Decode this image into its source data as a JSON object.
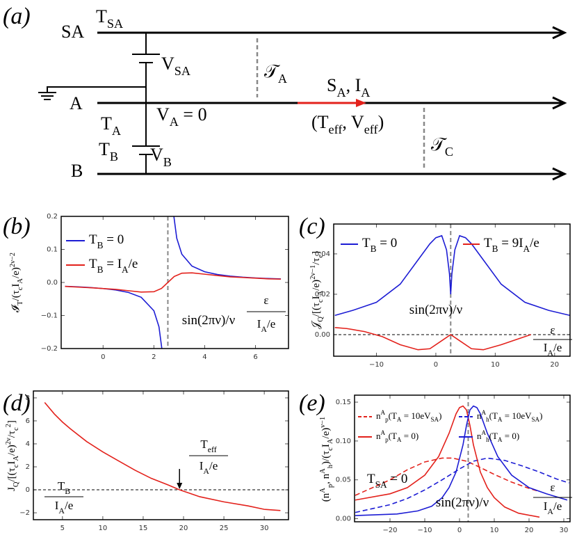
{
  "diagram": {
    "panel_label": "(a)",
    "sa": "SA",
    "t_sa": "T_{SA}",
    "v_sa": "V_{SA}",
    "tau_a": "𝒯_{A}",
    "a": "A",
    "t_a": "T_{A}",
    "v_a": "V_{A} = 0",
    "s_a": "S_{A},  I_{A}",
    "t_eff": "(T_{eff}, V_{eff})",
    "tau_c": "𝒯_{C}",
    "t_b": "T_{B}",
    "v_b": "V_{B}",
    "b": "B"
  },
  "chart_data": [
    {
      "type": "line",
      "panel_label": "(b)",
      "ylabel": "𝓘_{T}/(τ_{c}I_{A}/e)^{2ν−2}",
      "xlabel": [
        "ε",
        "I_{A}/e"
      ],
      "xlim": [
        -1.65,
        7.3
      ],
      "ylim": [
        -0.2,
        0.2
      ],
      "xticks": [
        0,
        2,
        4,
        6
      ],
      "yticks": [
        {
          "value": -0.2,
          "label": "−0.2"
        },
        {
          "value": -0.1,
          "label": "−0.1"
        },
        {
          "value": 0,
          "label": "0.0"
        },
        0.1,
        0.2
      ],
      "vline": 2.55,
      "annotations": [
        "sin(2πν)/ν"
      ],
      "series": [
        {
          "name": "T_{B} = 0",
          "color": "#1c1cd4",
          "linestyle": "solid",
          "x": [
            -1.5,
            -1,
            -0.5,
            0,
            0.5,
            1,
            1.5,
            2,
            2.2,
            2.32,
            2.55,
            2.78,
            2.9,
            3.1,
            3.5,
            4,
            4.5,
            5,
            5.5,
            6,
            6.5,
            7
          ],
          "values": [
            -0.0116,
            -0.0132,
            -0.0154,
            -0.0184,
            -0.0229,
            -0.0303,
            -0.0448,
            -0.0855,
            -0.134,
            -0.204,
            null,
            0.204,
            0.134,
            0.0855,
            0.0495,
            0.0324,
            0.0241,
            0.0192,
            0.0159,
            0.0136,
            0.0119,
            0.0106
          ]
        },
        {
          "name": "T_{B} = I_{A}/e",
          "color": "#e3211b",
          "linestyle": "solid",
          "x": [
            -1.5,
            -0.5,
            0.5,
            1,
            1.5,
            2,
            2.3,
            2.55,
            2.8,
            3.1,
            3.5,
            4,
            4.5,
            5,
            5.5,
            6,
            6.5,
            7
          ],
          "values": [
            -0.012,
            -0.016,
            -0.021,
            -0.025,
            -0.029,
            -0.028,
            -0.018,
            0,
            0.018,
            0.028,
            0.029,
            0.025,
            0.021,
            0.017,
            0.015,
            0.013,
            0.011,
            0.01
          ]
        }
      ]
    },
    {
      "type": "line",
      "panel_label": "(c)",
      "ylabel": "𝒥_{Q}/[(τ_{c}I_{A}/e)^{2ν−1}/τ_{c}]",
      "xlabel": [
        "ε",
        "I_{A}/e"
      ],
      "xlim": [
        -17.2,
        22.6
      ],
      "ylim": [
        -0.0107,
        0.0548
      ],
      "xticks": [
        {
          "value": -10,
          "label": "−10"
        },
        0,
        10,
        20
      ],
      "yticks": [
        {
          "value": 0,
          "label": "0.00"
        },
        0.02,
        0.04
      ],
      "vline": 2.5,
      "hline": 0,
      "annotations": [
        "sin(2πν)/ν"
      ],
      "series": [
        {
          "name": "T_{B} = 0",
          "color": "#1c1cd4",
          "linestyle": "solid",
          "x": [
            -17,
            -14,
            -10,
            -6,
            -3,
            -1,
            0,
            1,
            1.8,
            2.3,
            2.5,
            2.7,
            3.2,
            4,
            5,
            6,
            8,
            11,
            15,
            19,
            22.6
          ],
          "values": [
            0.0095,
            0.012,
            0.016,
            0.025,
            0.037,
            0.045,
            0.048,
            0.049,
            0.042,
            0.03,
            0.02,
            0.03,
            0.042,
            0.049,
            0.048,
            0.045,
            0.037,
            0.025,
            0.016,
            0.012,
            0.0095
          ]
        },
        {
          "name": "T_{B} = 9I_{A}/e",
          "color": "#e3211b",
          "linestyle": "solid",
          "x": [
            -17,
            -15,
            -12,
            -9,
            -6,
            -3,
            -1,
            1,
            2.5,
            4,
            6,
            8,
            11,
            14,
            16
          ],
          "values": [
            0.0035,
            0.003,
            0.0015,
            -0.001,
            -0.005,
            -0.0075,
            -0.007,
            -0.003,
            0,
            -0.003,
            -0.007,
            -0.0075,
            -0.005,
            -0.002,
            0
          ]
        }
      ]
    },
    {
      "type": "line",
      "panel_label": "(d)",
      "ylabel": "J_{Q}/[(τ_{c}I_{A}/e)^{2ν}/τ_{c}^{2}]",
      "xlim": [
        1.4,
        33
      ],
      "ylim": [
        -2.6,
        8.6
      ],
      "xticks": [
        5,
        10,
        15,
        20,
        25,
        30
      ],
      "yticks": [
        {
          "value": -2,
          "label": "−2"
        },
        0,
        2,
        4,
        6,
        8
      ],
      "hline": 0,
      "arrow_x": 19.5,
      "annotations": [
        [
          "T_{B}",
          "I_{A}/e"
        ],
        [
          "T_{eff}",
          "I_{A}/e"
        ]
      ],
      "series": [
        {
          "color": "#e3211b",
          "linestyle": "solid",
          "x": [
            2.8,
            4,
            5,
            6,
            8,
            10,
            12,
            14,
            16,
            18,
            19.5,
            22,
            25,
            28,
            30,
            32
          ],
          "values": [
            7.6,
            6.6,
            5.9,
            5.3,
            4.2,
            3.3,
            2.5,
            1.7,
            1.0,
            0.45,
            0,
            -0.6,
            -1.05,
            -1.4,
            -1.7,
            -1.8
          ]
        }
      ]
    },
    {
      "type": "line",
      "panel_label": "(e)",
      "ylabel": "(n^{A}_{p}, n^{A}_{h})/(τ_{c}I_{A}/e)^{ν−1}",
      "xlabel": [
        "ε",
        "I_{A}/e"
      ],
      "xlim": [
        -30.2,
        31.8
      ],
      "ylim": [
        -0.004,
        0.159
      ],
      "xticks": [
        {
          "value": -20,
          "label": "−20"
        },
        {
          "value": -10,
          "label": "−10"
        },
        0,
        10,
        20,
        30
      ],
      "yticks": [
        {
          "value": 0,
          "label": "0.00"
        },
        0.05,
        {
          "value": 0.1,
          "label": "0.10"
        },
        0.15
      ],
      "vline": 2.5,
      "annotations": [
        "T_{SA} = 0",
        "sin(2πν)/ν"
      ],
      "series": [
        {
          "name": "n^{A}_{p}(T_{A} = 10eV_{SA})",
          "color": "#e3211b",
          "linestyle": "dashed",
          "x": [
            -30,
            -20,
            -15,
            -10,
            -5,
            -2,
            2,
            5,
            10,
            15,
            20,
            23
          ],
          "values": [
            0.03,
            0.05,
            0.063,
            0.073,
            0.078,
            0.078,
            0.074,
            0.068,
            0.057,
            0.047,
            0.039,
            0.035
          ]
        },
        {
          "name": "n^{A}_{h}(T_{A} = 10eV_{SA})",
          "color": "#1c1cd4",
          "linestyle": "dashed",
          "x": [
            -30,
            -20,
            -15,
            -10,
            -5,
            0,
            4,
            8,
            13,
            18,
            23,
            28,
            31.5
          ],
          "values": [
            0.008,
            0.018,
            0.026,
            0.037,
            0.05,
            0.064,
            0.074,
            0.078,
            0.075,
            0.068,
            0.06,
            0.051,
            0.046
          ]
        },
        {
          "name": "n^{A}_{p}(T_{A} = 0)",
          "color": "#e3211b",
          "linestyle": "solid",
          "x": [
            -30,
            -20,
            -15,
            -10,
            -6,
            -3,
            -1,
            0,
            1,
            2,
            3,
            4,
            6,
            8,
            10,
            13,
            17,
            23
          ],
          "values": [
            0.024,
            0.032,
            0.04,
            0.056,
            0.08,
            0.11,
            0.135,
            0.143,
            0.145,
            0.14,
            0.12,
            0.095,
            0.06,
            0.04,
            0.027,
            0.015,
            0.007,
            0.002
          ]
        },
        {
          "name": "n^{A}_{h}(T_{A} = 0)",
          "color": "#1c1cd4",
          "linestyle": "solid",
          "x": [
            -30,
            -18,
            -12,
            -8,
            -5,
            -3,
            -1,
            1,
            2,
            3,
            4,
            5,
            6,
            8,
            11,
            15,
            20,
            25,
            31
          ],
          "values": [
            0.004,
            0.006,
            0.01,
            0.016,
            0.027,
            0.04,
            0.06,
            0.095,
            0.12,
            0.14,
            0.145,
            0.143,
            0.135,
            0.11,
            0.08,
            0.056,
            0.04,
            0.032,
            0.024
          ]
        }
      ]
    }
  ]
}
